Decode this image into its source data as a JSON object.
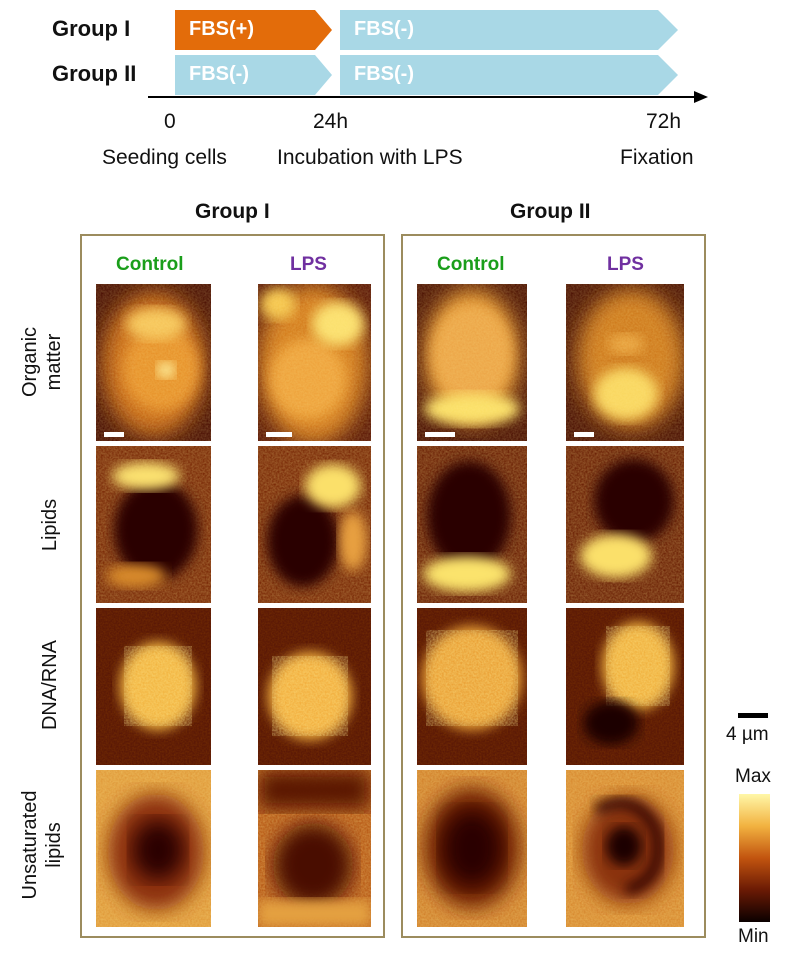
{
  "timeline": {
    "group1_label": "Group I",
    "group2_label": "Group II",
    "g1_first": "FBS(+)",
    "g1_second": "FBS(-)",
    "g2_first": "FBS(-)",
    "g2_second": "FBS(-)",
    "ticks": [
      "0",
      "24h",
      "72h"
    ],
    "events": [
      "Seeding cells",
      "Incubation with LPS",
      "Fixation"
    ],
    "colors": {
      "fbs_plus": "#e36c0a",
      "fbs_minus": "#a9d8e6"
    }
  },
  "panels": {
    "group1_title": "Group I",
    "group2_title": "Group II",
    "control_label": "Control",
    "lps_label": "LPS",
    "control_color": "#1a9e1a",
    "lps_color": "#7030a0",
    "border_color": "#9c8c5e"
  },
  "rows": [
    "Organic\nmatter",
    "Lipids",
    "DNA/RNA",
    "Unsaturated\nlipids"
  ],
  "legend": {
    "scale_label": "4 µm",
    "max_label": "Max",
    "min_label": "Min"
  }
}
